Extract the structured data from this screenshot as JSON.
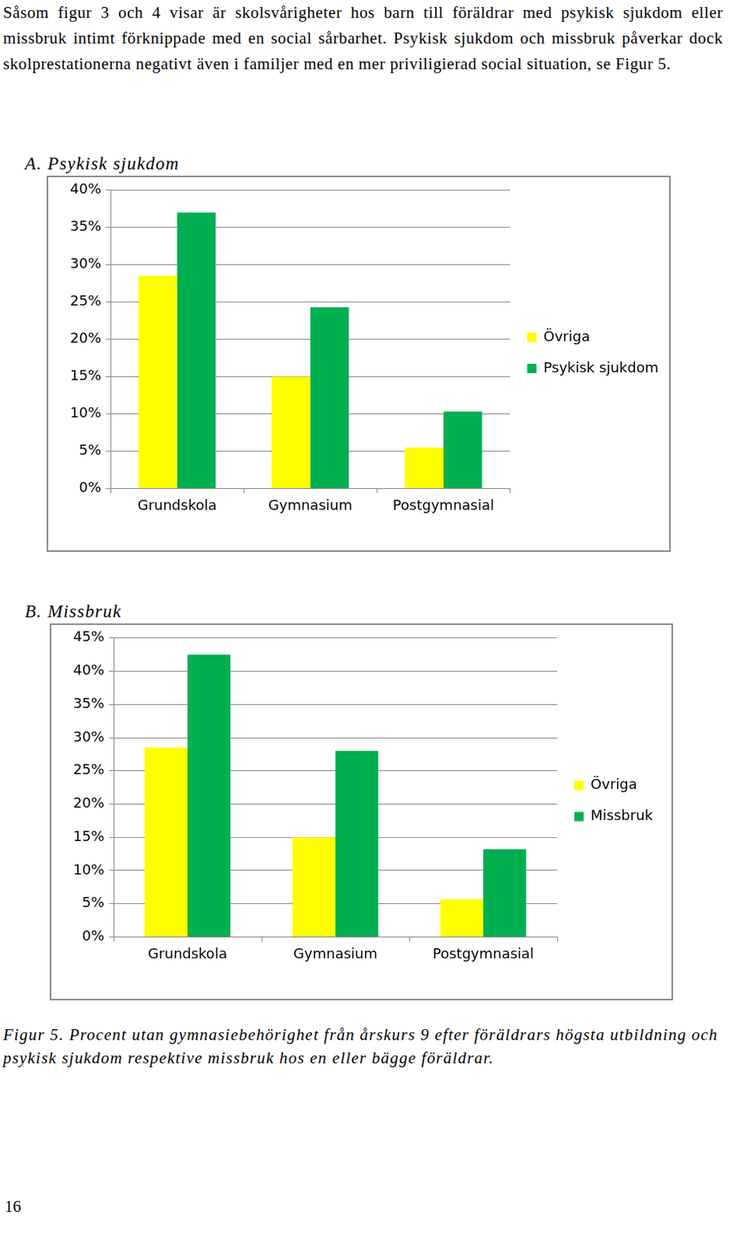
{
  "paragraph": "Såsom figur 3 och 4 visar är skolsvårigheter hos barn till föräldrar med psykisk sjukdom eller missbruk intimt förknippade med en social sårbarhet. Psykisk sjukdom och missbruk påverkar dock skolprestationerna negativt även i familjer med en mer priviligierad social situation, se Figur 5.",
  "chart_data": [
    {
      "type": "bar",
      "title": "A. Psykisk sjukdom",
      "categories": [
        "Grundskola",
        "Gymnasium",
        "Postgymnasial"
      ],
      "series": [
        {
          "name": "Övriga",
          "color": "#ffff00",
          "values": [
            28.5,
            15,
            5.5
          ]
        },
        {
          "name": "Psykisk sjukdom",
          "color": "#00b050",
          "values": [
            37,
            24.3,
            10.3
          ]
        }
      ],
      "ylim": [
        0,
        40
      ],
      "yticks": [
        {
          "value": 0,
          "label": "0%"
        },
        {
          "value": 5,
          "label": "5%"
        },
        {
          "value": 10,
          "label": "10%"
        },
        {
          "value": 15,
          "label": "15%"
        },
        {
          "value": 20,
          "label": "20%"
        },
        {
          "value": 25,
          "label": "25%"
        },
        {
          "value": 30,
          "label": "30%"
        },
        {
          "value": 35,
          "label": "35%"
        },
        {
          "value": 40,
          "label": "40%"
        }
      ],
      "grid": true,
      "legend": "right"
    },
    {
      "type": "bar",
      "title": "B. Missbruk",
      "categories": [
        "Grundskola",
        "Gymnasium",
        "Postgymnasial"
      ],
      "series": [
        {
          "name": "Övriga",
          "color": "#ffff00",
          "values": [
            28.5,
            15,
            5.7
          ]
        },
        {
          "name": "Missbruk",
          "color": "#00b050",
          "values": [
            42.5,
            28,
            13.2
          ]
        }
      ],
      "ylim": [
        0,
        45
      ],
      "yticks": [
        {
          "value": 0,
          "label": "0%"
        },
        {
          "value": 5,
          "label": "5%"
        },
        {
          "value": 10,
          "label": "10%"
        },
        {
          "value": 15,
          "label": "15%"
        },
        {
          "value": 20,
          "label": "20%"
        },
        {
          "value": 25,
          "label": "25%"
        },
        {
          "value": 30,
          "label": "30%"
        },
        {
          "value": 35,
          "label": "35%"
        },
        {
          "value": 40,
          "label": "40%"
        },
        {
          "value": 45,
          "label": "45%"
        }
      ],
      "grid": true,
      "legend": "right"
    }
  ],
  "caption": "Figur 5. Procent utan gymnasiebehörighet från årskurs 9 efter föräldrars högsta utbildning och psykisk sjukdom respektive missbruk hos en eller bägge föräldrar.",
  "page_number": "16"
}
